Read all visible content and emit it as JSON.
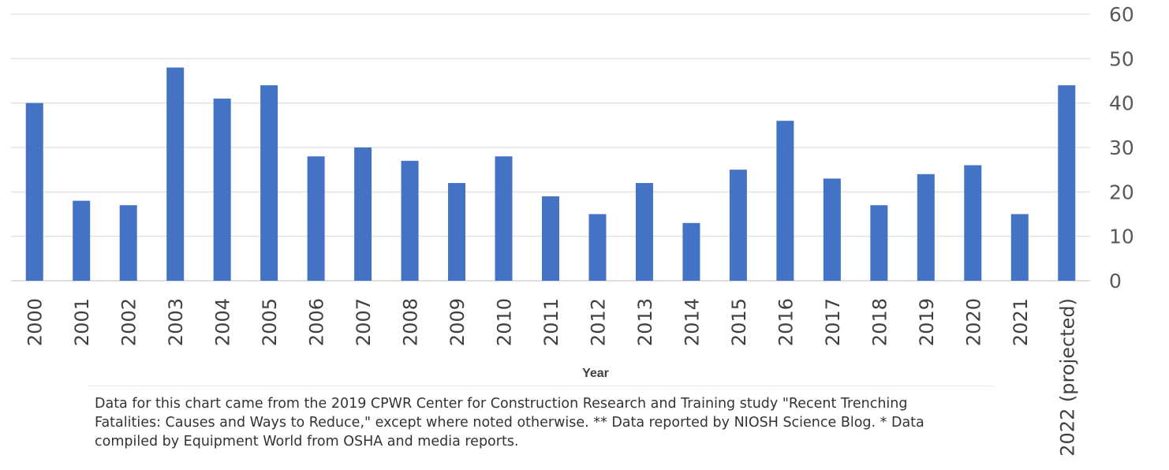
{
  "chart_data": {
    "type": "bar",
    "title": "",
    "xlabel": "Year",
    "ylabel": "",
    "ylim": [
      0,
      60
    ],
    "yticks": [
      "0",
      "10",
      "20",
      "30",
      "40",
      "50",
      "60"
    ],
    "y_axis_position": "right",
    "grid": true,
    "bar_color": "#4472c4",
    "categories": [
      "2000",
      "2001",
      "2002",
      "2003",
      "2004",
      "2005",
      "2006",
      "2007",
      "2008",
      "2009",
      "2010",
      "2011",
      "2012",
      "2013",
      "2014",
      "2015",
      "2016",
      "2017",
      "2018",
      "2019",
      "2020",
      "2021",
      "2022 (projected)"
    ],
    "values": [
      40,
      18,
      17,
      48,
      41,
      44,
      28,
      30,
      27,
      22,
      28,
      19,
      15,
      22,
      13,
      25,
      36,
      23,
      17,
      24,
      26,
      15,
      44
    ]
  },
  "footnote": "Data for this chart came from the 2019 CPWR Center for Construction Research and Training study \"Recent Trenching Fatalities: Causes and Ways to Reduce,\" except where noted otherwise. ** Data reported by NIOSH Science Blog. * Data compiled by Equipment World from OSHA and media reports."
}
